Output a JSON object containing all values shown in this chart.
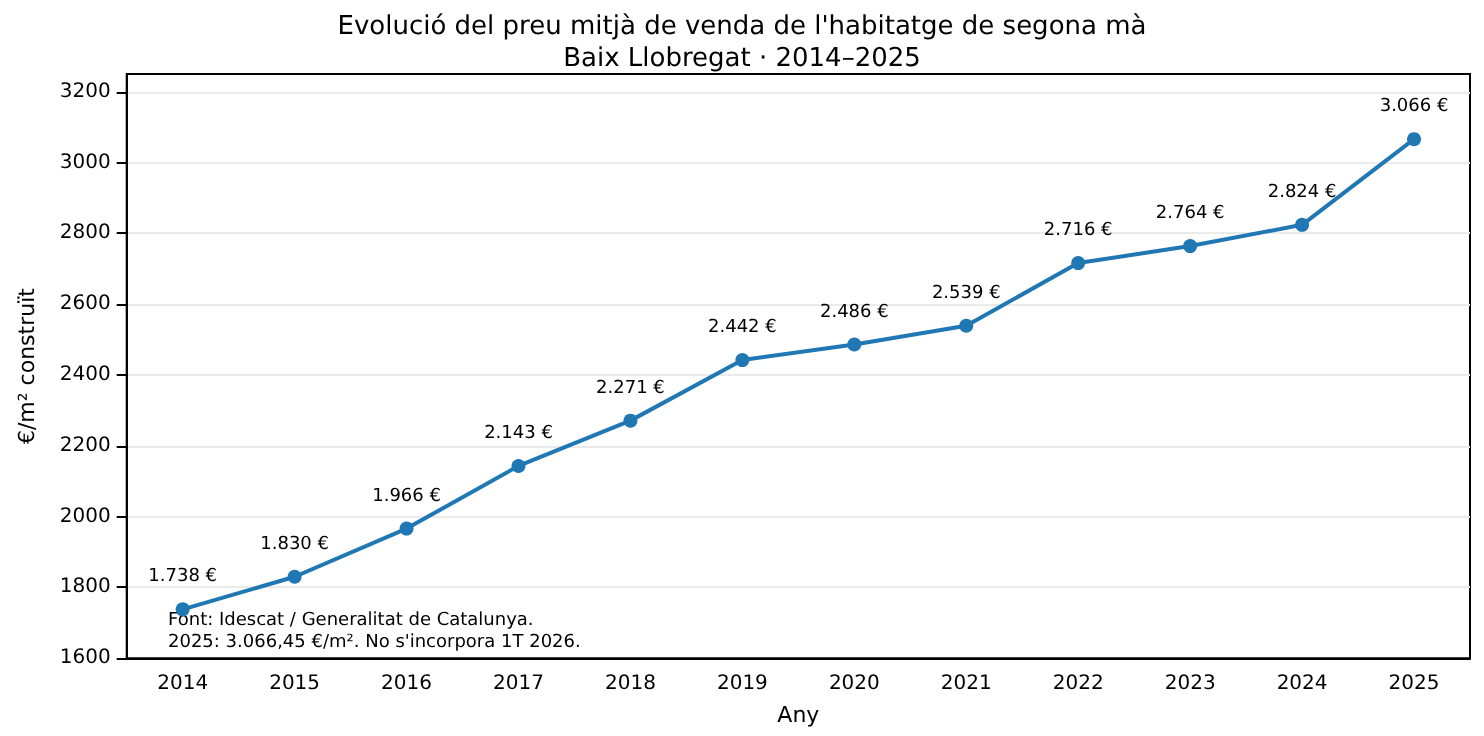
{
  "chart_data": {
    "type": "line",
    "title": "Evolució del preu mitjà de venda de l'habitatge de segona mà",
    "subtitle": "Baix Llobregat · 2014–2025",
    "xlabel": "Any",
    "ylabel": "€/m² construït",
    "categories": [
      "2014",
      "2015",
      "2016",
      "2017",
      "2018",
      "2019",
      "2020",
      "2021",
      "2022",
      "2023",
      "2024",
      "2025"
    ],
    "series": [
      {
        "color": "#1f77b4",
        "values": [
          1738,
          1830,
          1966,
          2143,
          2271,
          2442,
          2486,
          2539,
          2716,
          2764,
          2824,
          3066
        ],
        "value_labels": [
          "1.738 €",
          "1.830 €",
          "1.966 €",
          "2.143 €",
          "2.271 €",
          "2.442 €",
          "2.486 €",
          "2.539 €",
          "2.716 €",
          "2.764 €",
          "2.824 €",
          "3.066 €"
        ]
      }
    ],
    "ylim": [
      1600,
      3250
    ],
    "yticks": [
      1600,
      1800,
      2000,
      2200,
      2400,
      2600,
      2800,
      3000,
      3200
    ],
    "grid": "y",
    "marker": "circle",
    "line_style": "solid",
    "annotations": [
      "Font: Idescat / Generalitat de Catalunya.",
      "2025: 3.066,45 €/m². No s'incorpora 1T 2026."
    ]
  }
}
